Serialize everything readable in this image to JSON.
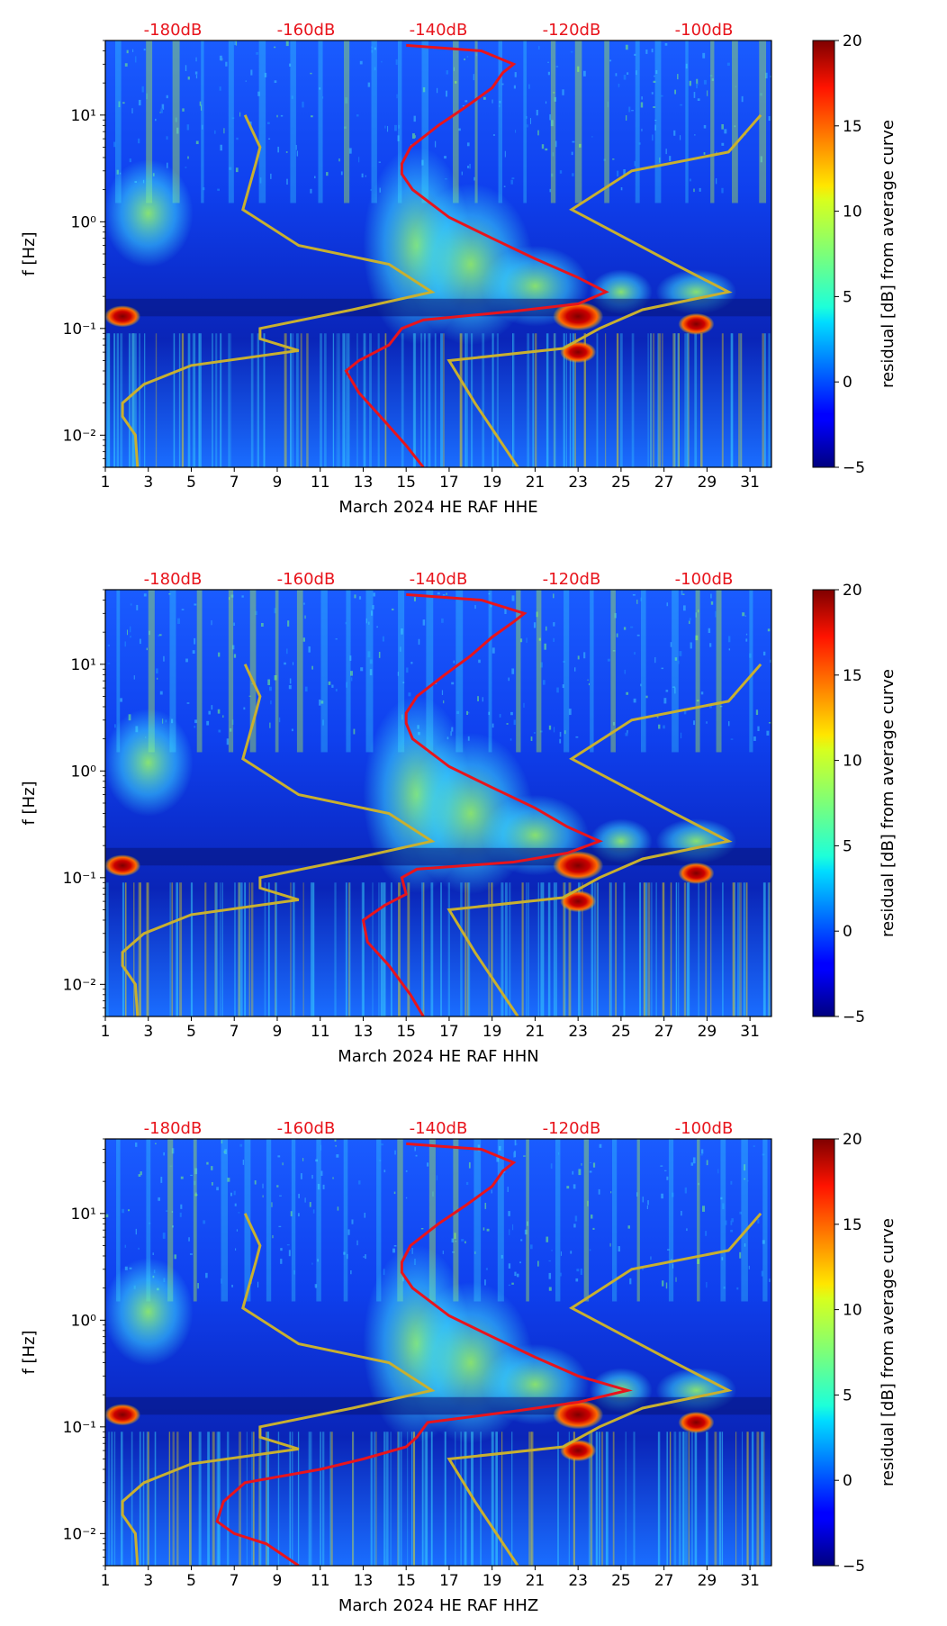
{
  "colors": {
    "red_curve": "#e8141c",
    "noise_model": "#c8b030",
    "db_label": "#e8141c",
    "colormap": "jet"
  },
  "chart_data": [
    {
      "type": "heatmap",
      "xlabel": "March 2024 HE RAF  HHE",
      "ylabel": "f [Hz]",
      "colorbar_label": "residual [dB] from average curve",
      "x_range": [
        1,
        32
      ],
      "x_ticks": [
        "1",
        "3",
        "5",
        "7",
        "9",
        "11",
        "13",
        "15",
        "17",
        "19",
        "21",
        "23",
        "25",
        "27",
        "29",
        "31"
      ],
      "y_range": [
        0.005,
        50
      ],
      "y_scale": "log",
      "y_ticks": [
        "10⁻²",
        "10⁻¹",
        "10⁰",
        "10¹"
      ],
      "colorbar_range": [
        -5,
        20
      ],
      "colorbar_ticks": [
        "−5",
        "0",
        "5",
        "10",
        "15",
        "20"
      ],
      "top_db_labels": [
        "-180dB",
        "-160dB",
        "-140dB",
        "-120dB",
        "-100dB"
      ],
      "psd_curve": [
        [
          15.8,
          0.005
        ],
        [
          15,
          0.008
        ],
        [
          13.8,
          0.015
        ],
        [
          12.8,
          0.025
        ],
        [
          12.2,
          0.04
        ],
        [
          12.8,
          0.05
        ],
        [
          14.2,
          0.07
        ],
        [
          14.8,
          0.1
        ],
        [
          15.8,
          0.12
        ],
        [
          20,
          0.145
        ],
        [
          23,
          0.17
        ],
        [
          24.3,
          0.22
        ],
        [
          23,
          0.3
        ],
        [
          21,
          0.45
        ],
        [
          19,
          0.7
        ],
        [
          17,
          1.1
        ],
        [
          15.3,
          2
        ],
        [
          14.8,
          2.8
        ],
        [
          14.8,
          3.5
        ],
        [
          15.2,
          5
        ],
        [
          16.5,
          8
        ],
        [
          17.8,
          12
        ],
        [
          19,
          18
        ],
        [
          19.5,
          25
        ],
        [
          20,
          30
        ],
        [
          18.5,
          40
        ],
        [
          15,
          45
        ]
      ],
      "noise_model_low": [
        [
          2.5,
          0.005
        ],
        [
          2.4,
          0.01
        ],
        [
          1.8,
          0.015
        ],
        [
          1.8,
          0.02
        ],
        [
          2.8,
          0.03
        ],
        [
          5,
          0.045
        ],
        [
          10,
          0.062
        ],
        [
          8.2,
          0.08
        ],
        [
          8.2,
          0.1
        ],
        [
          12.5,
          0.15
        ],
        [
          16.2,
          0.22
        ],
        [
          14.2,
          0.4
        ],
        [
          10,
          0.6
        ],
        [
          7.4,
          1.3
        ],
        [
          8,
          3.5
        ],
        [
          8.2,
          5
        ],
        [
          7.5,
          10
        ]
      ],
      "noise_model_high": [
        [
          20.2,
          0.005
        ],
        [
          18.2,
          0.02
        ],
        [
          17,
          0.05
        ],
        [
          22.3,
          0.065
        ],
        [
          24,
          0.1
        ],
        [
          26,
          0.15
        ],
        [
          30,
          0.22
        ],
        [
          27.5,
          0.4
        ],
        [
          22.7,
          1.3
        ],
        [
          25.5,
          3
        ],
        [
          30,
          4.5
        ],
        [
          31.5,
          10
        ]
      ],
      "bright_spots": [
        [
          23,
          0.13
        ],
        [
          23,
          0.06
        ],
        [
          28.5,
          0.11
        ],
        [
          1.8,
          0.13
        ]
      ]
    },
    {
      "type": "heatmap",
      "xlabel": "March 2024 HE RAF  HHN",
      "ylabel": "f [Hz]",
      "colorbar_label": "residual [dB] from average curve",
      "x_range": [
        1,
        32
      ],
      "x_ticks": [
        "1",
        "3",
        "5",
        "7",
        "9",
        "11",
        "13",
        "15",
        "17",
        "19",
        "21",
        "23",
        "25",
        "27",
        "29",
        "31"
      ],
      "y_range": [
        0.005,
        50
      ],
      "y_scale": "log",
      "y_ticks": [
        "10⁻²",
        "10⁻¹",
        "10⁰",
        "10¹"
      ],
      "colorbar_range": [
        -5,
        20
      ],
      "colorbar_ticks": [
        "−5",
        "0",
        "5",
        "10",
        "15",
        "20"
      ],
      "top_db_labels": [
        "-180dB",
        "-160dB",
        "-140dB",
        "-120dB",
        "-100dB"
      ],
      "psd_curve": [
        [
          15.8,
          0.005
        ],
        [
          15.2,
          0.008
        ],
        [
          14.2,
          0.015
        ],
        [
          13.2,
          0.025
        ],
        [
          13,
          0.04
        ],
        [
          14,
          0.055
        ],
        [
          15,
          0.07
        ],
        [
          14.8,
          0.1
        ],
        [
          15.5,
          0.12
        ],
        [
          20,
          0.14
        ],
        [
          22.5,
          0.17
        ],
        [
          24,
          0.22
        ],
        [
          22.5,
          0.3
        ],
        [
          21,
          0.45
        ],
        [
          19,
          0.7
        ],
        [
          17,
          1.1
        ],
        [
          15.3,
          2
        ],
        [
          15,
          2.8
        ],
        [
          15,
          3.5
        ],
        [
          15.5,
          5
        ],
        [
          16.8,
          8
        ],
        [
          18,
          12
        ],
        [
          19,
          18
        ],
        [
          20,
          25
        ],
        [
          20.5,
          30
        ],
        [
          18.5,
          40
        ],
        [
          15,
          45
        ]
      ],
      "noise_model_low": [
        [
          2.5,
          0.005
        ],
        [
          2.4,
          0.01
        ],
        [
          1.8,
          0.015
        ],
        [
          1.8,
          0.02
        ],
        [
          2.8,
          0.03
        ],
        [
          5,
          0.045
        ],
        [
          10,
          0.062
        ],
        [
          8.2,
          0.08
        ],
        [
          8.2,
          0.1
        ],
        [
          12.5,
          0.15
        ],
        [
          16.2,
          0.22
        ],
        [
          14.2,
          0.4
        ],
        [
          10,
          0.6
        ],
        [
          7.4,
          1.3
        ],
        [
          8,
          3.5
        ],
        [
          8.2,
          5
        ],
        [
          7.5,
          10
        ]
      ],
      "noise_model_high": [
        [
          20.2,
          0.005
        ],
        [
          18.2,
          0.02
        ],
        [
          17,
          0.05
        ],
        [
          22.3,
          0.065
        ],
        [
          24,
          0.1
        ],
        [
          26,
          0.15
        ],
        [
          30,
          0.22
        ],
        [
          27.5,
          0.4
        ],
        [
          22.7,
          1.3
        ],
        [
          25.5,
          3
        ],
        [
          30,
          4.5
        ],
        [
          31.5,
          10
        ]
      ],
      "bright_spots": [
        [
          23,
          0.13
        ],
        [
          23,
          0.06
        ],
        [
          28.5,
          0.11
        ],
        [
          1.8,
          0.13
        ]
      ]
    },
    {
      "type": "heatmap",
      "xlabel": "March 2024 HE RAF  HHZ",
      "ylabel": "f [Hz]",
      "colorbar_label": "residual [dB] from average curve",
      "x_range": [
        1,
        32
      ],
      "x_ticks": [
        "1",
        "3",
        "5",
        "7",
        "9",
        "11",
        "13",
        "15",
        "17",
        "19",
        "21",
        "23",
        "25",
        "27",
        "29",
        "31"
      ],
      "y_range": [
        0.005,
        50
      ],
      "y_scale": "log",
      "y_ticks": [
        "10⁻²",
        "10⁻¹",
        "10⁰",
        "10¹"
      ],
      "colorbar_range": [
        -5,
        20
      ],
      "colorbar_ticks": [
        "−5",
        "0",
        "5",
        "10",
        "15",
        "20"
      ],
      "top_db_labels": [
        "-180dB",
        "-160dB",
        "-140dB",
        "-120dB",
        "-100dB"
      ],
      "psd_curve": [
        [
          10,
          0.005
        ],
        [
          8.5,
          0.008
        ],
        [
          7,
          0.01
        ],
        [
          6.2,
          0.013
        ],
        [
          6.5,
          0.02
        ],
        [
          7.5,
          0.03
        ],
        [
          11,
          0.04
        ],
        [
          13,
          0.05
        ],
        [
          15,
          0.065
        ],
        [
          15.5,
          0.08
        ],
        [
          16,
          0.11
        ],
        [
          20,
          0.14
        ],
        [
          23,
          0.17
        ],
        [
          25.3,
          0.22
        ],
        [
          23,
          0.3
        ],
        [
          21,
          0.45
        ],
        [
          19,
          0.7
        ],
        [
          17,
          1.1
        ],
        [
          15.3,
          2
        ],
        [
          14.8,
          2.8
        ],
        [
          14.8,
          3.5
        ],
        [
          15.2,
          5
        ],
        [
          16.5,
          8
        ],
        [
          17.8,
          12
        ],
        [
          19,
          18
        ],
        [
          19.5,
          25
        ],
        [
          20,
          30
        ],
        [
          18.5,
          40
        ],
        [
          15,
          45
        ]
      ],
      "noise_model_low": [
        [
          2.5,
          0.005
        ],
        [
          2.4,
          0.01
        ],
        [
          1.8,
          0.015
        ],
        [
          1.8,
          0.02
        ],
        [
          2.8,
          0.03
        ],
        [
          5,
          0.045
        ],
        [
          10,
          0.062
        ],
        [
          8.2,
          0.08
        ],
        [
          8.2,
          0.1
        ],
        [
          12.5,
          0.15
        ],
        [
          16.2,
          0.22
        ],
        [
          14.2,
          0.4
        ],
        [
          10,
          0.6
        ],
        [
          7.4,
          1.3
        ],
        [
          8,
          3.5
        ],
        [
          8.2,
          5
        ],
        [
          7.5,
          10
        ]
      ],
      "noise_model_high": [
        [
          20.2,
          0.005
        ],
        [
          18.2,
          0.02
        ],
        [
          17,
          0.05
        ],
        [
          22.3,
          0.065
        ],
        [
          24,
          0.1
        ],
        [
          26,
          0.15
        ],
        [
          30,
          0.22
        ],
        [
          27.5,
          0.4
        ],
        [
          22.7,
          1.3
        ],
        [
          25.5,
          3
        ],
        [
          30,
          4.5
        ],
        [
          31.5,
          10
        ]
      ],
      "bright_spots": [
        [
          23,
          0.13
        ],
        [
          23,
          0.06
        ],
        [
          28.5,
          0.11
        ],
        [
          1.8,
          0.13
        ]
      ]
    }
  ]
}
